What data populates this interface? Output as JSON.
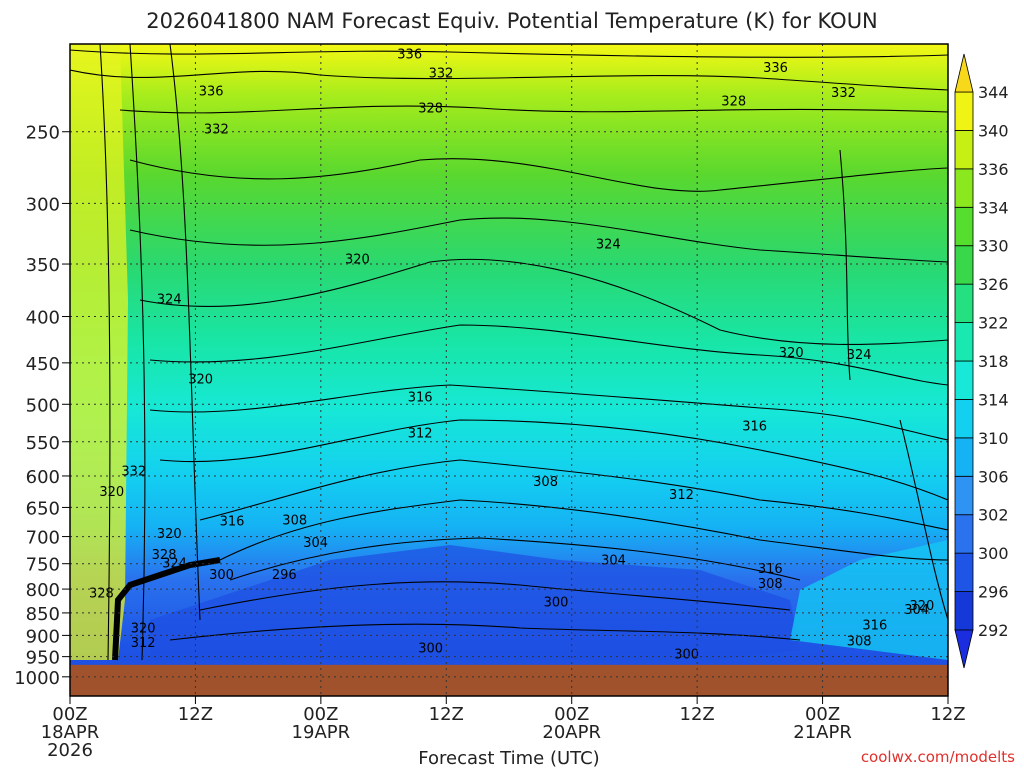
{
  "chart_data": {
    "type": "heatmap",
    "title": "2026041800 NAM Forecast Equiv. Potential Temperature (K) for KOUN",
    "xlabel": "Forecast Time (UTC)",
    "ylabel": "",
    "x_ticks": [
      {
        "hour": 0,
        "lines": [
          "00Z",
          "18APR",
          "2026"
        ]
      },
      {
        "hour": 12,
        "lines": [
          "12Z"
        ]
      },
      {
        "hour": 24,
        "lines": [
          "00Z",
          "19APR"
        ]
      },
      {
        "hour": 36,
        "lines": [
          "12Z"
        ]
      },
      {
        "hour": 48,
        "lines": [
          "00Z",
          "20APR"
        ]
      },
      {
        "hour": 60,
        "lines": [
          "12Z"
        ]
      },
      {
        "hour": 72,
        "lines": [
          "00Z",
          "21APR"
        ]
      },
      {
        "hour": 84,
        "lines": [
          "12Z"
        ]
      }
    ],
    "xlim": [
      0,
      84
    ],
    "y_ticks": [
      250,
      300,
      350,
      400,
      450,
      500,
      550,
      600,
      650,
      700,
      750,
      800,
      850,
      900,
      950,
      1000
    ],
    "ylim": [
      200,
      1050
    ],
    "y_scale": "log-pressure",
    "grid": true,
    "colorbar": {
      "levels": [
        292,
        296,
        300,
        302,
        306,
        310,
        314,
        318,
        322,
        326,
        330,
        334,
        336,
        340,
        344
      ],
      "colors": [
        "#1538d8",
        "#1e55e6",
        "#2a72ee",
        "#2f93f4",
        "#15b2f4",
        "#14d0f0",
        "#17e8d8",
        "#19e8b0",
        "#24e080",
        "#38d84a",
        "#55de2e",
        "#8ce81e",
        "#c6f014",
        "#f0f414",
        "#f8d81a"
      ]
    },
    "contour_labels": [
      {
        "text": "336",
        "hour": 32.5,
        "p": 205
      },
      {
        "text": "336",
        "hour": 13.5,
        "p": 225
      },
      {
        "text": "336",
        "hour": 67.5,
        "p": 212
      },
      {
        "text": "332",
        "hour": 35.5,
        "p": 215
      },
      {
        "text": "332",
        "hour": 14,
        "p": 248
      },
      {
        "text": "332",
        "hour": 74,
        "p": 226
      },
      {
        "text": "328",
        "hour": 34.5,
        "p": 235
      },
      {
        "text": "328",
        "hour": 63.5,
        "p": 231
      },
      {
        "text": "324",
        "hour": 51.5,
        "p": 332
      },
      {
        "text": "324",
        "hour": 9.5,
        "p": 382
      },
      {
        "text": "324",
        "hour": 75.5,
        "p": 440
      },
      {
        "text": "320",
        "hour": 27.5,
        "p": 345
      },
      {
        "text": "320",
        "hour": 12.5,
        "p": 468
      },
      {
        "text": "320",
        "hour": 69,
        "p": 438
      },
      {
        "text": "316",
        "hour": 33.5,
        "p": 490
      },
      {
        "text": "316",
        "hour": 65.5,
        "p": 528
      },
      {
        "text": "316",
        "hour": 15.5,
        "p": 672
      },
      {
        "text": "316",
        "hour": 67,
        "p": 758
      },
      {
        "text": "316",
        "hour": 77,
        "p": 875
      },
      {
        "text": "312",
        "hour": 33.5,
        "p": 537
      },
      {
        "text": "312",
        "hour": 58.5,
        "p": 628
      },
      {
        "text": "308",
        "hour": 45.5,
        "p": 608
      },
      {
        "text": "308",
        "hour": 21.5,
        "p": 670
      },
      {
        "text": "308",
        "hour": 67,
        "p": 788
      },
      {
        "text": "308",
        "hour": 75.5,
        "p": 912
      },
      {
        "text": "304",
        "hour": 23.5,
        "p": 710
      },
      {
        "text": "304",
        "hour": 52,
        "p": 742
      },
      {
        "text": "304",
        "hour": 81,
        "p": 842
      },
      {
        "text": "300",
        "hour": 14.5,
        "p": 770
      },
      {
        "text": "300",
        "hour": 46.5,
        "p": 826
      },
      {
        "text": "300",
        "hour": 34.5,
        "p": 928
      },
      {
        "text": "300",
        "hour": 59,
        "p": 942
      },
      {
        "text": "296",
        "hour": 20.5,
        "p": 770
      },
      {
        "text": "332",
        "hour": 6.1,
        "p": 592
      },
      {
        "text": "320",
        "hour": 4,
        "p": 623
      },
      {
        "text": "320",
        "hour": 9.5,
        "p": 694
      },
      {
        "text": "328",
        "hour": 9,
        "p": 732
      },
      {
        "text": "324",
        "hour": 10,
        "p": 748
      },
      {
        "text": "328",
        "hour": 3,
        "p": 807
      },
      {
        "text": "320",
        "hour": 7,
        "p": 882
      },
      {
        "text": "312",
        "hour": 7,
        "p": 915
      },
      {
        "text": "320",
        "hour": 81.5,
        "p": 833
      }
    ],
    "terrain_color": "#a0522d",
    "surface_pressure": 970
  },
  "credit": "coolwx.com/modelts"
}
